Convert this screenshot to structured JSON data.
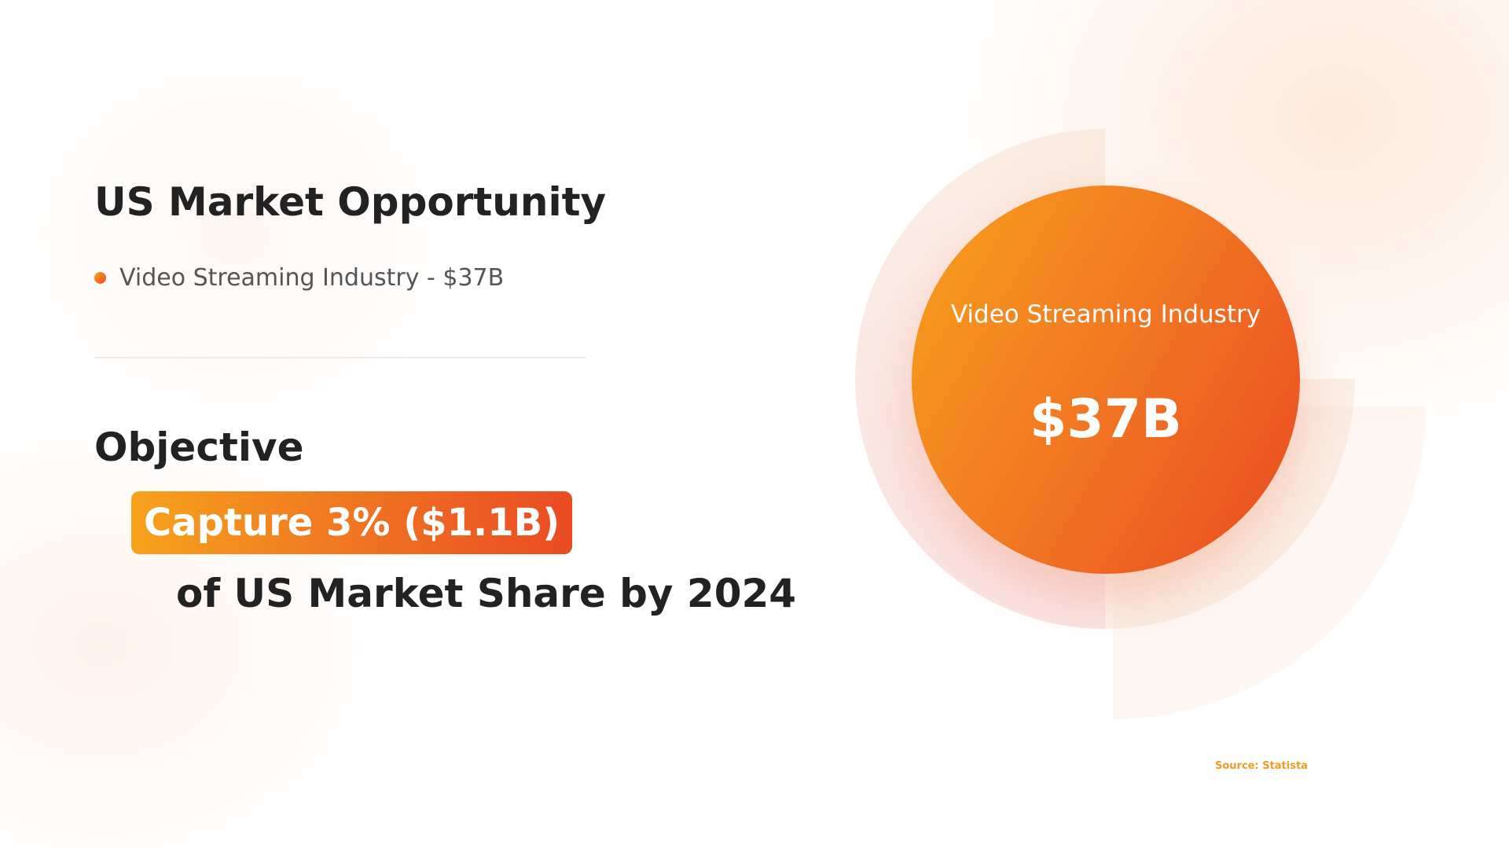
{
  "slide": {
    "heading": "US Market Opportunity",
    "bullet": "Video Streaming Industry - $37B",
    "objective_title": "Objective",
    "capture_highlight": "Capture 3% ($1.1B)",
    "market_share_line": "of US Market Share by 2024"
  },
  "graphic": {
    "circle_label": "Video Streaming Industry",
    "circle_value": "$37B",
    "source": "Source: Statista"
  },
  "icons": {
    "bullet": "orange-dot-bullet-icon",
    "logo": "striped-brand-logo-icon"
  },
  "colors": {
    "accent_start": "#f8a11c",
    "accent_end": "#ea4a21",
    "heading": "#222222",
    "body_text": "#555555",
    "source_text": "#f39a21"
  }
}
